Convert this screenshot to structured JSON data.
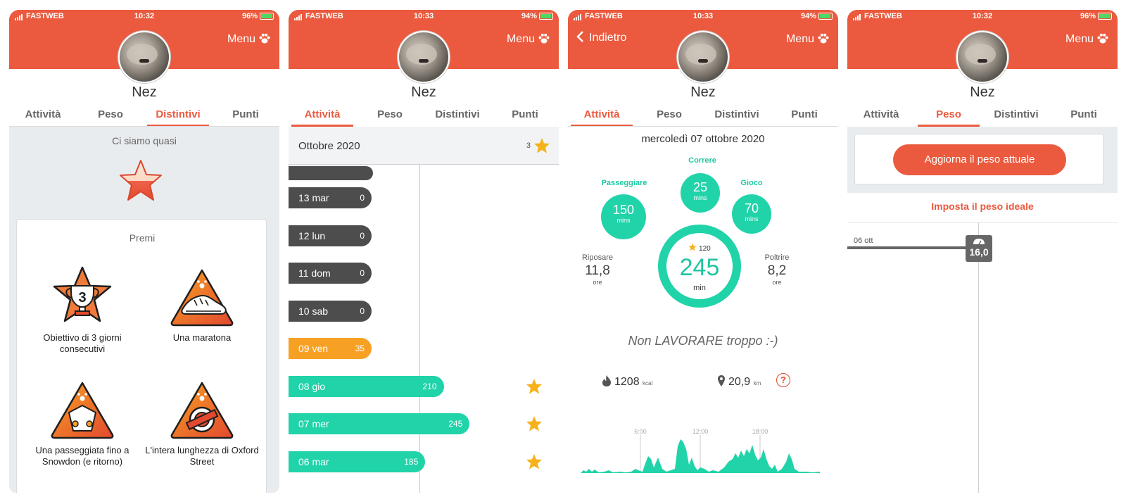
{
  "status_bars": [
    {
      "carrier": "FASTWEB",
      "time": "10:32",
      "battery": "96%"
    },
    {
      "carrier": "FASTWEB",
      "time": "10:33",
      "battery": "94%"
    },
    {
      "carrier": "FASTWEB",
      "time": "10:33",
      "battery": "94%"
    },
    {
      "carrier": "FASTWEB",
      "time": "10:32",
      "battery": "96%"
    }
  ],
  "header": {
    "menu_label": "Menu",
    "back_label": "Indietro",
    "pet_name": "Nez"
  },
  "tabs": [
    "Attività",
    "Peso",
    "Distintivi",
    "Punti"
  ],
  "badges_screen": {
    "subtitle": "Ci siamo quasi",
    "prizes_title": "Premi",
    "trophy_number": "3",
    "badges": [
      {
        "label": "Obiettivo di 3 giorni consecutivi",
        "icon": "trophy-star-icon"
      },
      {
        "label": "Una maratona",
        "icon": "running-shoe-icon"
      },
      {
        "label": "Una passeggiata fino a Snowdon (e ritorno)",
        "icon": "mountain-flowers-icon"
      },
      {
        "label": "L'intera lunghezza di Oxford Street",
        "icon": "underground-sign-icon"
      }
    ]
  },
  "activity_screen": {
    "month": "Ottobre 2020",
    "month_stars": "3",
    "days": [
      {
        "label": "13 mar",
        "value": "0",
        "minutes": 0,
        "style": "gray",
        "star": false
      },
      {
        "label": "12 lun",
        "value": "0",
        "minutes": 0,
        "style": "gray",
        "star": false
      },
      {
        "label": "11 dom",
        "value": "0",
        "minutes": 0,
        "style": "gray",
        "star": false
      },
      {
        "label": "10 sab",
        "value": "0",
        "minutes": 0,
        "style": "gray",
        "star": false
      },
      {
        "label": "09 ven",
        "value": "35",
        "minutes": 35,
        "style": "orange",
        "star": false
      },
      {
        "label": "08 gio",
        "value": "210",
        "minutes": 210,
        "style": "green",
        "star": true
      },
      {
        "label": "07 mer",
        "value": "245",
        "minutes": 245,
        "style": "green",
        "star": true
      },
      {
        "label": "06 mar",
        "value": "185",
        "minutes": 185,
        "style": "green",
        "star": true
      }
    ]
  },
  "day_screen": {
    "date": "mercoledì 07 ottobre 2020",
    "activities": [
      {
        "name": "Passeggiare",
        "value": "150",
        "unit": "mins"
      },
      {
        "name": "Correre",
        "value": "25",
        "unit": "mins"
      },
      {
        "name": "Gioco",
        "value": "70",
        "unit": "mins"
      }
    ],
    "goal": "120",
    "total": "245",
    "total_unit": "min",
    "rest": {
      "label": "Riposare",
      "value": "11,8",
      "unit": "ore"
    },
    "couch": {
      "label": "Poltrire",
      "value": "8,2",
      "unit": "ore"
    },
    "motto": "Non LAVORARE troppo :-)",
    "kcal": "1208",
    "kcal_unit": "kcal",
    "distance": "20,9",
    "distance_unit": "km",
    "help": "?",
    "chart_hours": [
      "6:00",
      "12:00",
      "18:00"
    ]
  },
  "weight_screen": {
    "update_button": "Aggiorna il peso attuale",
    "ideal_link": "Imposta il peso ideale",
    "entry_date": "06 ott",
    "entry_value": "16,0"
  },
  "colors": {
    "brand": "#eb5a3e",
    "teal": "#21d3a9",
    "orange": "#f7a124",
    "star": "#f5b21b"
  }
}
